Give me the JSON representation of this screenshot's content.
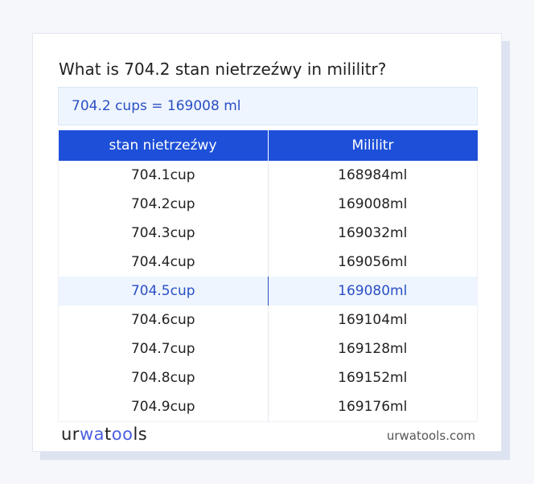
{
  "title": "What is 704.2 stan nietrzeźwy in mililitr?",
  "result": "704.2 cups = 169008 ml",
  "table": {
    "headers": [
      "stan nietrzeźwy",
      "Mililitr"
    ],
    "rows": [
      [
        "704.1cup",
        "168984ml"
      ],
      [
        "704.2cup",
        "169008ml"
      ],
      [
        "704.3cup",
        "169032ml"
      ],
      [
        "704.4cup",
        "169056ml"
      ],
      [
        "704.5cup",
        "169080ml"
      ],
      [
        "704.6cup",
        "169104ml"
      ],
      [
        "704.7cup",
        "169128ml"
      ],
      [
        "704.8cup",
        "169152ml"
      ],
      [
        "704.9cup",
        "169176ml"
      ]
    ],
    "highlighted_row": 4
  },
  "footer": {
    "logo": "urwatools",
    "site": "urwatools.com"
  },
  "colors": {
    "accent": "#1d4fd8",
    "highlight_bg": "#eef5fe",
    "highlight_text": "#2b4fc4"
  }
}
